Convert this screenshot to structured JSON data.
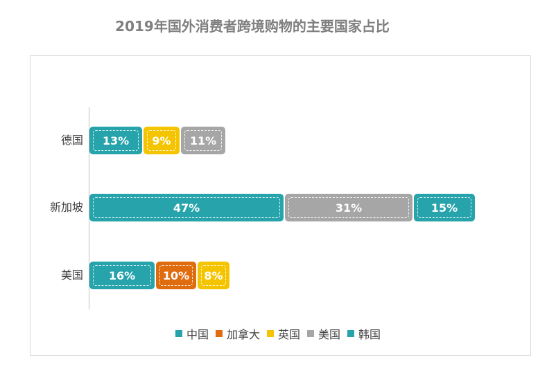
{
  "chart_data": {
    "type": "bar",
    "orientation": "horizontal",
    "stacked": true,
    "title": "2019年国外消费者跨境购物的主要国家占比",
    "categories": [
      "德国",
      "新加坡",
      "美国"
    ],
    "legend": {
      "placement": "bottom",
      "entries": [
        {
          "name": "中国",
          "color": "#26a3ab"
        },
        {
          "name": "加拿大",
          "color": "#e06c10"
        },
        {
          "name": "英国",
          "color": "#f5c400"
        },
        {
          "name": "美国",
          "color": "#a6a6a6"
        },
        {
          "name": "韩国",
          "color": "#26a3ab"
        }
      ]
    },
    "rows": [
      {
        "category": "德国",
        "segments": [
          {
            "series": "中国",
            "value": 13,
            "label": "13%"
          },
          {
            "series": "英国",
            "value": 9,
            "label": "9%"
          },
          {
            "series": "美国",
            "value": 11,
            "label": "11%"
          }
        ]
      },
      {
        "category": "新加坡",
        "segments": [
          {
            "series": "中国",
            "value": 47,
            "label": "47%"
          },
          {
            "series": "美国",
            "value": 31,
            "label": "31%"
          },
          {
            "series": "韩国",
            "value": 15,
            "label": "15%"
          }
        ]
      },
      {
        "category": "美国",
        "segments": [
          {
            "series": "中国",
            "value": 16,
            "label": "16%"
          },
          {
            "series": "加拿大",
            "value": 10,
            "label": "10%"
          },
          {
            "series": "英国",
            "value": 8,
            "label": "8%"
          }
        ]
      }
    ],
    "xlim": [
      0,
      100
    ],
    "grid": false
  }
}
